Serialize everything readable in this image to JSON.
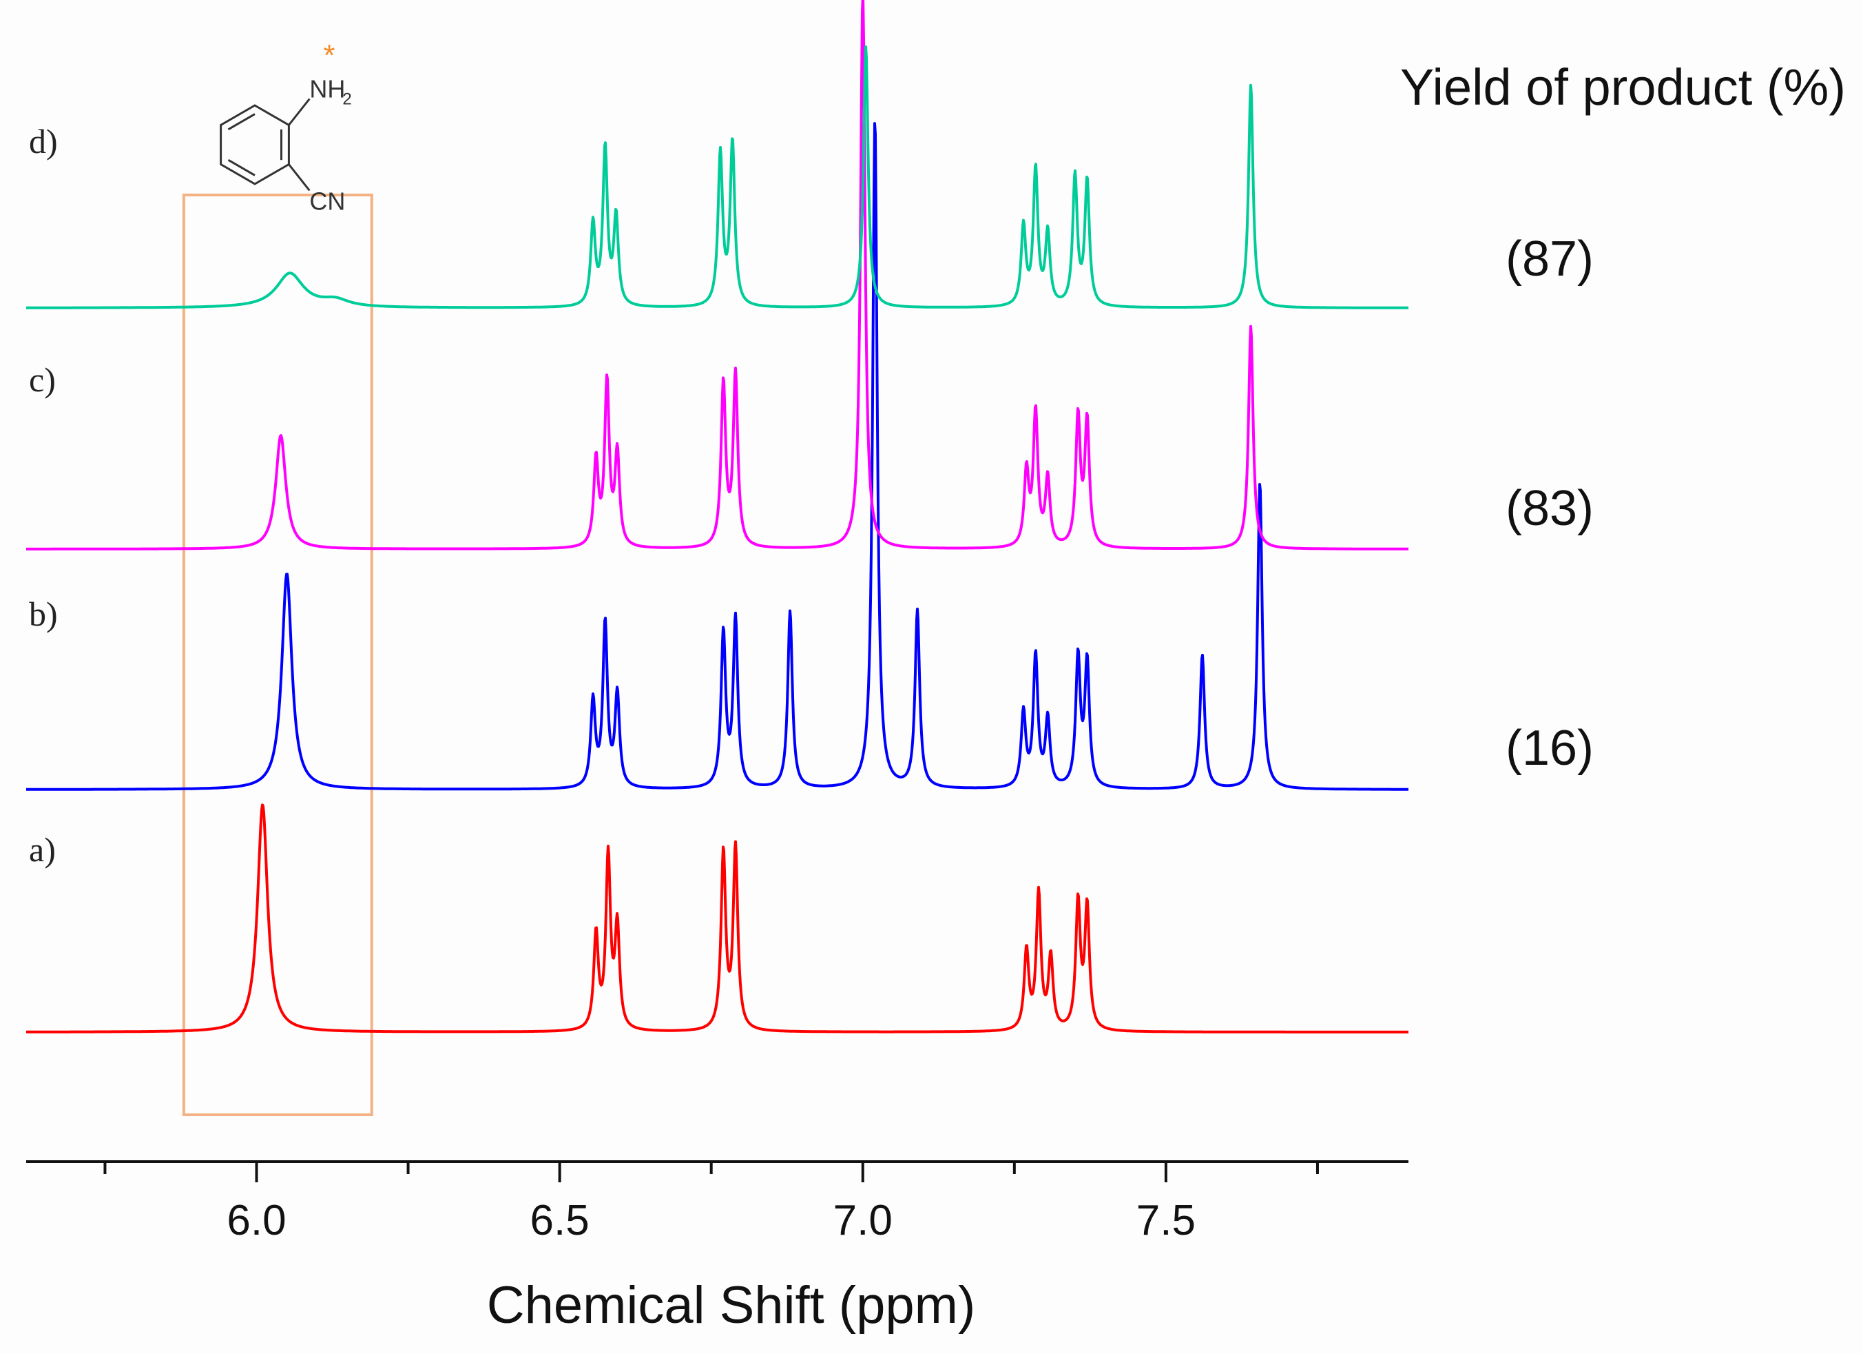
{
  "chart_data": {
    "type": "line",
    "subtype": "stacked 1H NMR spectra",
    "xlabel": "Chemical Shift (ppm)",
    "xlim": [
      5.62,
      7.9
    ],
    "x_direction": "increasing to the right",
    "xticks": [
      6.0,
      6.5,
      7.0,
      7.5
    ],
    "xtick_labels": [
      "6.0",
      "6.5",
      "7.0",
      "7.5"
    ],
    "minor_ticks": [
      5.75,
      6.25,
      6.75,
      7.25,
      7.75
    ],
    "yield_header": "Yield of product (%)",
    "highlight_region": {
      "x_range_ppm": [
        5.88,
        6.19
      ],
      "color": "#f4b183",
      "label": "NH2 resonance"
    },
    "structure": {
      "name": "2-aminobenzonitrile",
      "nh2_label": "NH",
      "nh2_subscript": "2",
      "cn_label": "CN",
      "marker": "*",
      "marker_color": "#f28c28"
    },
    "series": [
      {
        "name": "a)",
        "color": "#ff0000",
        "yield_label": "",
        "peaks": [
          {
            "ppm": 6.01,
            "height": 1.0
          },
          {
            "ppm": 6.56,
            "height": 0.42
          },
          {
            "ppm": 6.58,
            "height": 0.76
          },
          {
            "ppm": 6.595,
            "height": 0.45
          },
          {
            "ppm": 6.77,
            "height": 0.78
          },
          {
            "ppm": 6.79,
            "height": 0.8
          },
          {
            "ppm": 7.27,
            "height": 0.35
          },
          {
            "ppm": 7.29,
            "height": 0.6
          },
          {
            "ppm": 7.31,
            "height": 0.32
          },
          {
            "ppm": 7.355,
            "height": 0.56
          },
          {
            "ppm": 7.37,
            "height": 0.54
          }
        ]
      },
      {
        "name": "b)",
        "color": "#0000ff",
        "yield_label": "(16)",
        "peaks": [
          {
            "ppm": 6.05,
            "height": 0.95
          },
          {
            "ppm": 6.555,
            "height": 0.38
          },
          {
            "ppm": 6.575,
            "height": 0.72
          },
          {
            "ppm": 6.595,
            "height": 0.41
          },
          {
            "ppm": 6.77,
            "height": 0.68
          },
          {
            "ppm": 6.79,
            "height": 0.74
          },
          {
            "ppm": 6.88,
            "height": 0.78
          },
          {
            "ppm": 7.02,
            "height": 2.95
          },
          {
            "ppm": 7.09,
            "height": 0.78
          },
          {
            "ppm": 7.265,
            "height": 0.33
          },
          {
            "ppm": 7.285,
            "height": 0.58
          },
          {
            "ppm": 7.305,
            "height": 0.3
          },
          {
            "ppm": 7.355,
            "height": 0.57
          },
          {
            "ppm": 7.37,
            "height": 0.55
          },
          {
            "ppm": 7.56,
            "height": 0.59
          },
          {
            "ppm": 7.655,
            "height": 1.35
          }
        ]
      },
      {
        "name": "c)",
        "color": "#ff00ff",
        "yield_label": "(83)",
        "peaks": [
          {
            "ppm": 6.04,
            "height": 0.5
          },
          {
            "ppm": 6.56,
            "height": 0.38
          },
          {
            "ppm": 6.578,
            "height": 0.72
          },
          {
            "ppm": 6.595,
            "height": 0.41
          },
          {
            "ppm": 6.77,
            "height": 0.72
          },
          {
            "ppm": 6.79,
            "height": 0.76
          },
          {
            "ppm": 7.0,
            "height": 2.45
          },
          {
            "ppm": 7.27,
            "height": 0.33
          },
          {
            "ppm": 7.285,
            "height": 0.59
          },
          {
            "ppm": 7.305,
            "height": 0.3
          },
          {
            "ppm": 7.355,
            "height": 0.57
          },
          {
            "ppm": 7.37,
            "height": 0.55
          },
          {
            "ppm": 7.64,
            "height": 0.98
          }
        ]
      },
      {
        "name": "d)",
        "color": "#00cc99",
        "yield_label": "(87)",
        "peaks": [
          {
            "ppm": 6.055,
            "height": 0.15
          },
          {
            "ppm": 6.13,
            "height": 0.03
          },
          {
            "ppm": 6.555,
            "height": 0.36
          },
          {
            "ppm": 6.575,
            "height": 0.69
          },
          {
            "ppm": 6.593,
            "height": 0.39
          },
          {
            "ppm": 6.765,
            "height": 0.67
          },
          {
            "ppm": 6.785,
            "height": 0.72
          },
          {
            "ppm": 7.005,
            "height": 1.15
          },
          {
            "ppm": 7.265,
            "height": 0.35
          },
          {
            "ppm": 7.285,
            "height": 0.6
          },
          {
            "ppm": 7.305,
            "height": 0.32
          },
          {
            "ppm": 7.35,
            "height": 0.57
          },
          {
            "ppm": 7.37,
            "height": 0.55
          },
          {
            "ppm": 7.64,
            "height": 0.98
          }
        ]
      }
    ]
  }
}
